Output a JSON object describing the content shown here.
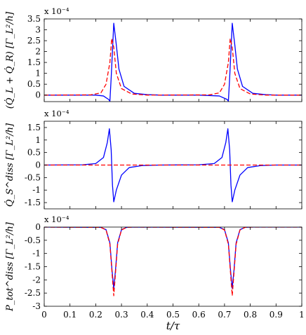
{
  "figure": {
    "xlabel": "t/τ",
    "x_ticks": [
      "0",
      "0.1",
      "0.2",
      "0.3",
      "0.4",
      "0.5",
      "0.6",
      "0.7",
      "0.8",
      "0.9",
      "1"
    ]
  },
  "colors": {
    "solid": "#0000ff",
    "dashed": "#ff0000"
  },
  "chart_data": [
    {
      "type": "line",
      "ylabel": "(Q̇_L + Q̇_R) [Γ_L²/h]",
      "multiplier": "x 10⁻⁴",
      "xlim": [
        0,
        1
      ],
      "ylim": [
        -0.3,
        3.5
      ],
      "y_ticks": [
        "3.5",
        "3",
        "2.5",
        "2",
        "1.5",
        "1",
        "0.5",
        "0"
      ],
      "grid": false,
      "series": [
        {
          "style": "solid",
          "points": [
            [
              0,
              0
            ],
            [
              0.2,
              0
            ],
            [
              0.23,
              -0.04
            ],
            [
              0.25,
              -0.2
            ],
            [
              0.255,
              -0.28
            ],
            [
              0.26,
              0.8
            ],
            [
              0.27,
              3.3
            ],
            [
              0.28,
              2.3
            ],
            [
              0.29,
              1.2
            ],
            [
              0.31,
              0.4
            ],
            [
              0.35,
              0.08
            ],
            [
              0.4,
              0.02
            ],
            [
              0.45,
              0
            ],
            [
              0.6,
              0
            ],
            [
              0.68,
              -0.04
            ],
            [
              0.71,
              -0.2
            ],
            [
              0.715,
              -0.28
            ],
            [
              0.72,
              0.8
            ],
            [
              0.73,
              3.3
            ],
            [
              0.74,
              2.3
            ],
            [
              0.75,
              1.2
            ],
            [
              0.77,
              0.4
            ],
            [
              0.81,
              0.08
            ],
            [
              0.86,
              0.02
            ],
            [
              0.9,
              0
            ],
            [
              1,
              0
            ]
          ]
        },
        {
          "style": "dashed",
          "points": [
            [
              0,
              0
            ],
            [
              0.18,
              0.01
            ],
            [
              0.22,
              0.1
            ],
            [
              0.24,
              0.5
            ],
            [
              0.255,
              1.5
            ],
            [
              0.262,
              2.6
            ],
            [
              0.27,
              2.2
            ],
            [
              0.28,
              1.0
            ],
            [
              0.3,
              0.3
            ],
            [
              0.34,
              0.05
            ],
            [
              0.4,
              0
            ],
            [
              0.64,
              0.01
            ],
            [
              0.68,
              0.1
            ],
            [
              0.7,
              0.5
            ],
            [
              0.715,
              1.5
            ],
            [
              0.722,
              2.6
            ],
            [
              0.73,
              2.2
            ],
            [
              0.74,
              1.0
            ],
            [
              0.76,
              0.3
            ],
            [
              0.8,
              0.05
            ],
            [
              0.86,
              0
            ],
            [
              1,
              0
            ]
          ]
        }
      ]
    },
    {
      "type": "line",
      "ylabel": "Q̇_S^diss [Γ_L²/h]",
      "multiplier": "x 10⁻⁴",
      "xlim": [
        0,
        1
      ],
      "ylim": [
        -1.75,
        1.75
      ],
      "y_ticks": [
        "1.5",
        "1",
        "0.5",
        "0",
        "-0.5",
        "-1",
        "-1.5"
      ],
      "grid": false,
      "series": [
        {
          "style": "solid",
          "points": [
            [
              0,
              0
            ],
            [
              0.15,
              0.01
            ],
            [
              0.2,
              0.06
            ],
            [
              0.23,
              0.3
            ],
            [
              0.245,
              0.9
            ],
            [
              0.253,
              1.45
            ],
            [
              0.26,
              0.6
            ],
            [
              0.265,
              -0.8
            ],
            [
              0.27,
              -1.47
            ],
            [
              0.28,
              -1.0
            ],
            [
              0.3,
              -0.4
            ],
            [
              0.33,
              -0.1
            ],
            [
              0.38,
              -0.02
            ],
            [
              0.45,
              0
            ],
            [
              0.6,
              0.01
            ],
            [
              0.66,
              0.06
            ],
            [
              0.69,
              0.3
            ],
            [
              0.705,
              0.9
            ],
            [
              0.713,
              1.45
            ],
            [
              0.72,
              0.6
            ],
            [
              0.725,
              -0.8
            ],
            [
              0.73,
              -1.47
            ],
            [
              0.74,
              -1.0
            ],
            [
              0.76,
              -0.4
            ],
            [
              0.79,
              -0.1
            ],
            [
              0.84,
              -0.02
            ],
            [
              0.9,
              0
            ],
            [
              1,
              0
            ]
          ]
        },
        {
          "style": "dashed",
          "points": [
            [
              0,
              0
            ],
            [
              1,
              0
            ]
          ]
        }
      ]
    },
    {
      "type": "line",
      "ylabel": "P_tot^diss [Γ_L²/h]",
      "multiplier": "x 10⁻⁴",
      "xlim": [
        0,
        1
      ],
      "ylim": [
        -3,
        0
      ],
      "y_ticks": [
        "0",
        "-0.5",
        "-1",
        "-1.5",
        "-2",
        "-2.5",
        "-3"
      ],
      "grid": false,
      "series": [
        {
          "style": "solid",
          "points": [
            [
              0,
              0
            ],
            [
              0.22,
              -0.01
            ],
            [
              0.24,
              -0.1
            ],
            [
              0.255,
              -0.6
            ],
            [
              0.263,
              -1.6
            ],
            [
              0.27,
              -2.32
            ],
            [
              0.277,
              -1.6
            ],
            [
              0.285,
              -0.6
            ],
            [
              0.3,
              -0.1
            ],
            [
              0.32,
              -0.01
            ],
            [
              0.35,
              0
            ],
            [
              0.68,
              -0.01
            ],
            [
              0.7,
              -0.1
            ],
            [
              0.715,
              -0.6
            ],
            [
              0.723,
              -1.6
            ],
            [
              0.73,
              -2.32
            ],
            [
              0.737,
              -1.6
            ],
            [
              0.745,
              -0.6
            ],
            [
              0.76,
              -0.1
            ],
            [
              0.78,
              -0.01
            ],
            [
              0.81,
              0
            ],
            [
              1,
              0
            ]
          ]
        },
        {
          "style": "dashed",
          "points": [
            [
              0,
              0
            ],
            [
              0.22,
              -0.01
            ],
            [
              0.24,
              -0.11
            ],
            [
              0.255,
              -0.65
            ],
            [
              0.263,
              -1.7
            ],
            [
              0.27,
              -2.6
            ],
            [
              0.277,
              -1.7
            ],
            [
              0.285,
              -0.65
            ],
            [
              0.3,
              -0.11
            ],
            [
              0.32,
              -0.01
            ],
            [
              0.35,
              0
            ],
            [
              0.68,
              -0.01
            ],
            [
              0.7,
              -0.11
            ],
            [
              0.715,
              -0.65
            ],
            [
              0.723,
              -1.7
            ],
            [
              0.73,
              -2.6
            ],
            [
              0.737,
              -1.7
            ],
            [
              0.745,
              -0.65
            ],
            [
              0.76,
              -0.11
            ],
            [
              0.78,
              -0.01
            ],
            [
              0.81,
              0
            ],
            [
              1,
              0
            ]
          ]
        }
      ]
    }
  ]
}
